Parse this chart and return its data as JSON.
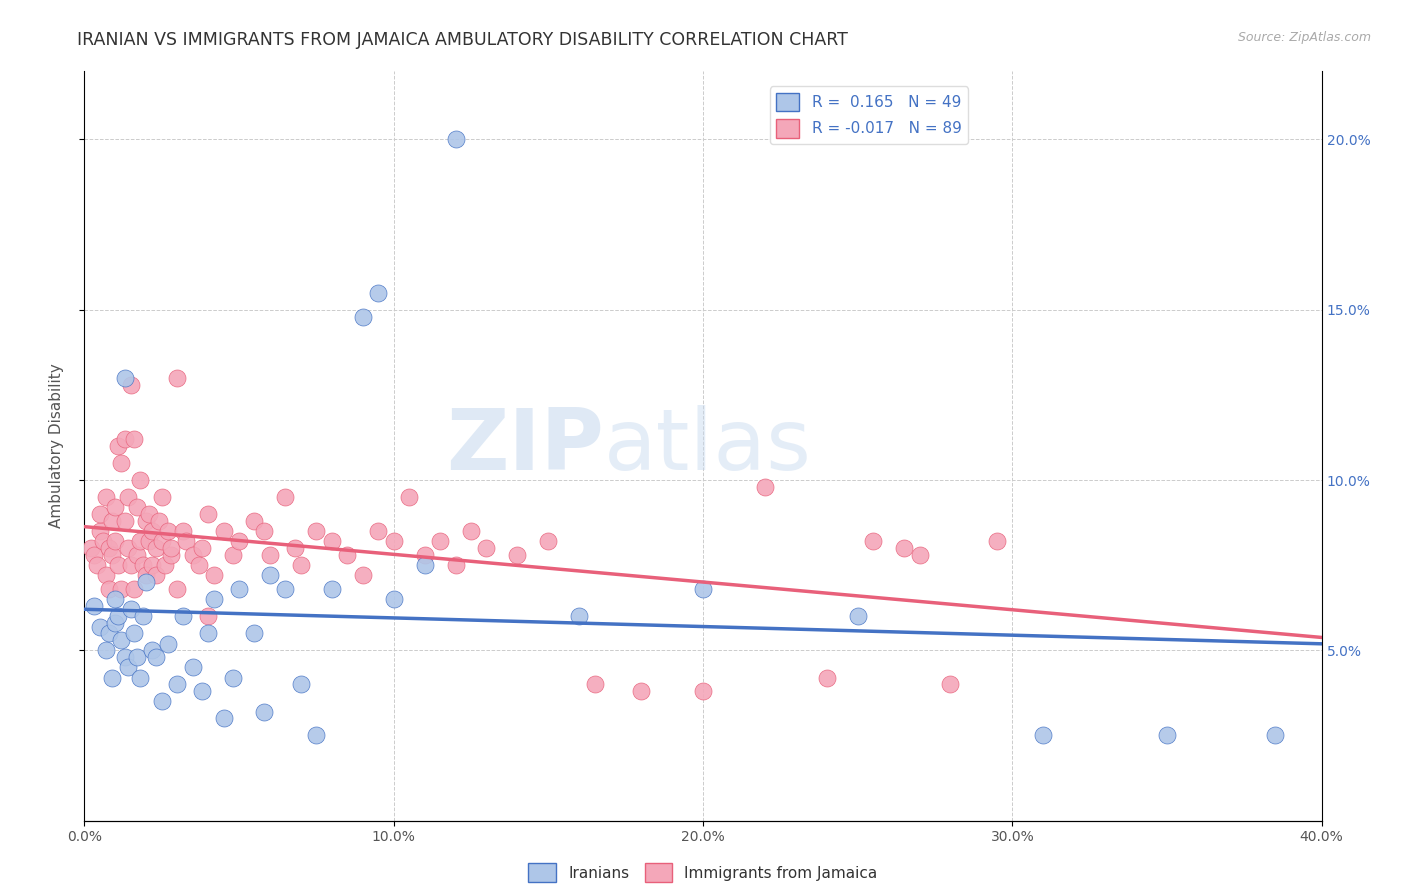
{
  "title": "IRANIAN VS IMMIGRANTS FROM JAMAICA AMBULATORY DISABILITY CORRELATION CHART",
  "source": "Source: ZipAtlas.com",
  "ylabel": "Ambulatory Disability",
  "xlim": [
    0.0,
    0.4
  ],
  "ylim": [
    0.0,
    0.22
  ],
  "yticks": [
    0.05,
    0.1,
    0.15,
    0.2
  ],
  "ytick_labels": [
    "5.0%",
    "10.0%",
    "15.0%",
    "20.0%"
  ],
  "xticks": [
    0.0,
    0.1,
    0.2,
    0.3,
    0.4
  ],
  "xtick_labels": [
    "0.0%",
    "10.0%",
    "20.0%",
    "30.0%",
    "40.0%"
  ],
  "watermark_zip": "ZIP",
  "watermark_atlas": "atlas",
  "iranians_color": "#aec6e8",
  "jamaicans_color": "#f4a7b9",
  "iranians_edge_color": "#4472c4",
  "jamaicans_edge_color": "#e8607a",
  "iranians_line_color": "#4472c4",
  "jamaicans_line_color": "#e8607a",
  "R_iranians": 0.165,
  "N_iranians": 49,
  "R_jamaicans": -0.017,
  "N_jamaicans": 89,
  "iranians_x": [
    0.003,
    0.005,
    0.007,
    0.008,
    0.009,
    0.01,
    0.01,
    0.011,
    0.012,
    0.013,
    0.013,
    0.014,
    0.015,
    0.016,
    0.017,
    0.018,
    0.019,
    0.02,
    0.022,
    0.023,
    0.025,
    0.027,
    0.03,
    0.032,
    0.035,
    0.038,
    0.04,
    0.042,
    0.045,
    0.048,
    0.05,
    0.055,
    0.058,
    0.06,
    0.065,
    0.07,
    0.075,
    0.08,
    0.09,
    0.095,
    0.1,
    0.11,
    0.12,
    0.16,
    0.2,
    0.25,
    0.31,
    0.35,
    0.385
  ],
  "iranians_y": [
    0.063,
    0.057,
    0.05,
    0.055,
    0.042,
    0.065,
    0.058,
    0.06,
    0.053,
    0.048,
    0.13,
    0.045,
    0.062,
    0.055,
    0.048,
    0.042,
    0.06,
    0.07,
    0.05,
    0.048,
    0.035,
    0.052,
    0.04,
    0.06,
    0.045,
    0.038,
    0.055,
    0.065,
    0.03,
    0.042,
    0.068,
    0.055,
    0.032,
    0.072,
    0.068,
    0.04,
    0.025,
    0.068,
    0.148,
    0.155,
    0.065,
    0.075,
    0.2,
    0.06,
    0.068,
    0.06,
    0.025,
    0.025,
    0.025
  ],
  "jamaicans_x": [
    0.002,
    0.003,
    0.004,
    0.005,
    0.005,
    0.006,
    0.007,
    0.007,
    0.008,
    0.008,
    0.009,
    0.009,
    0.01,
    0.01,
    0.011,
    0.011,
    0.012,
    0.012,
    0.013,
    0.013,
    0.014,
    0.014,
    0.015,
    0.015,
    0.016,
    0.016,
    0.017,
    0.017,
    0.018,
    0.018,
    0.019,
    0.02,
    0.02,
    0.021,
    0.021,
    0.022,
    0.022,
    0.023,
    0.023,
    0.024,
    0.025,
    0.025,
    0.026,
    0.027,
    0.028,
    0.028,
    0.03,
    0.03,
    0.032,
    0.033,
    0.035,
    0.037,
    0.038,
    0.04,
    0.042,
    0.045,
    0.048,
    0.05,
    0.055,
    0.058,
    0.06,
    0.065,
    0.068,
    0.07,
    0.075,
    0.08,
    0.085,
    0.09,
    0.095,
    0.1,
    0.105,
    0.11,
    0.115,
    0.12,
    0.125,
    0.13,
    0.14,
    0.15,
    0.165,
    0.18,
    0.2,
    0.22,
    0.24,
    0.255,
    0.265,
    0.27,
    0.28,
    0.295,
    0.04
  ],
  "jamaicans_y": [
    0.08,
    0.078,
    0.075,
    0.085,
    0.09,
    0.082,
    0.072,
    0.095,
    0.08,
    0.068,
    0.088,
    0.078,
    0.082,
    0.092,
    0.075,
    0.11,
    0.068,
    0.105,
    0.088,
    0.112,
    0.08,
    0.095,
    0.075,
    0.128,
    0.068,
    0.112,
    0.078,
    0.092,
    0.1,
    0.082,
    0.075,
    0.088,
    0.072,
    0.09,
    0.082,
    0.075,
    0.085,
    0.08,
    0.072,
    0.088,
    0.082,
    0.095,
    0.075,
    0.085,
    0.078,
    0.08,
    0.13,
    0.068,
    0.085,
    0.082,
    0.078,
    0.075,
    0.08,
    0.09,
    0.072,
    0.085,
    0.078,
    0.082,
    0.088,
    0.085,
    0.078,
    0.095,
    0.08,
    0.075,
    0.085,
    0.082,
    0.078,
    0.072,
    0.085,
    0.082,
    0.095,
    0.078,
    0.082,
    0.075,
    0.085,
    0.08,
    0.078,
    0.082,
    0.04,
    0.038,
    0.038,
    0.098,
    0.042,
    0.082,
    0.08,
    0.078,
    0.04,
    0.082,
    0.06
  ],
  "background_color": "#ffffff",
  "grid_color": "#cccccc",
  "title_fontsize": 12.5,
  "axis_label_fontsize": 11,
  "tick_fontsize": 10,
  "legend_fontsize": 11
}
